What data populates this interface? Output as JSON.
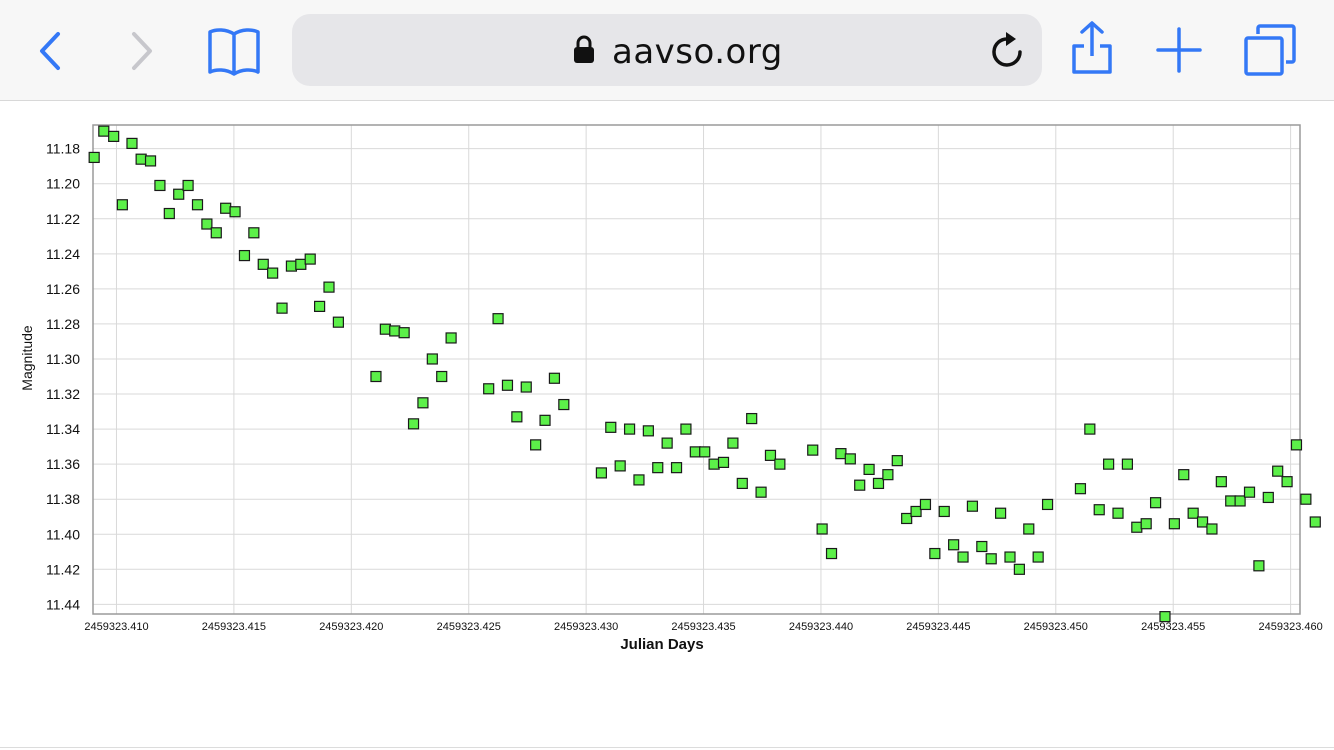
{
  "browser": {
    "url": "aavso.org",
    "icons": [
      "back-icon",
      "forward-icon",
      "bookmarks-icon",
      "lock-icon",
      "reload-icon",
      "share-icon",
      "new-tab-icon",
      "tabs-icon"
    ],
    "colors": {
      "accent": "#3478f6",
      "disabled": "#c7c7cc"
    }
  },
  "chart_data": {
    "type": "scatter",
    "xlabel": "Julian Days",
    "ylabel": "Magnitude",
    "xlim": [
      2459323.409,
      2459323.4604
    ],
    "ylim": [
      11.4455,
      11.1665
    ],
    "y_inverted": true,
    "grid": true,
    "xticks": [
      "2459323.410",
      "2459323.415",
      "2459323.420",
      "2459323.425",
      "2459323.430",
      "2459323.435",
      "2459323.440",
      "2459323.445",
      "2459323.450",
      "2459323.455",
      "2459323.460"
    ],
    "yticks": [
      "11.18",
      "11.20",
      "11.22",
      "11.24",
      "11.26",
      "11.28",
      "11.30",
      "11.32",
      "11.34",
      "11.36",
      "11.38",
      "11.40",
      "11.42",
      "11.44"
    ],
    "marker_color": "#5cf049",
    "points": [
      [
        2459323.40905,
        11.185
      ],
      [
        2459323.40946,
        11.17
      ],
      [
        2459323.40988,
        11.173
      ],
      [
        2459323.41025,
        11.212
      ],
      [
        2459323.41066,
        11.177
      ],
      [
        2459323.41105,
        11.186
      ],
      [
        2459323.41145,
        11.187
      ],
      [
        2459323.41185,
        11.201
      ],
      [
        2459323.41225,
        11.217
      ],
      [
        2459323.41265,
        11.206
      ],
      [
        2459323.41305,
        11.201
      ],
      [
        2459323.41345,
        11.212
      ],
      [
        2459323.41385,
        11.223
      ],
      [
        2459323.41425,
        11.228
      ],
      [
        2459323.41465,
        11.214
      ],
      [
        2459323.41505,
        11.216
      ],
      [
        2459323.41545,
        11.241
      ],
      [
        2459323.41585,
        11.228
      ],
      [
        2459323.41625,
        11.246
      ],
      [
        2459323.41665,
        11.251
      ],
      [
        2459323.41705,
        11.271
      ],
      [
        2459323.41745,
        11.247
      ],
      [
        2459323.41785,
        11.246
      ],
      [
        2459323.41825,
        11.243
      ],
      [
        2459323.41865,
        11.27
      ],
      [
        2459323.41905,
        11.259
      ],
      [
        2459323.41945,
        11.279
      ],
      [
        2459323.42105,
        11.31
      ],
      [
        2459323.42145,
        11.283
      ],
      [
        2459323.42185,
        11.284
      ],
      [
        2459323.42225,
        11.285
      ],
      [
        2459323.42265,
        11.337
      ],
      [
        2459323.42305,
        11.325
      ],
      [
        2459323.42345,
        11.3
      ],
      [
        2459323.42385,
        11.31
      ],
      [
        2459323.42425,
        11.288
      ],
      [
        2459323.42585,
        11.317
      ],
      [
        2459323.42625,
        11.277
      ],
      [
        2459323.42665,
        11.315
      ],
      [
        2459323.42705,
        11.333
      ],
      [
        2459323.42745,
        11.316
      ],
      [
        2459323.42785,
        11.349
      ],
      [
        2459323.42825,
        11.335
      ],
      [
        2459323.42865,
        11.311
      ],
      [
        2459323.42905,
        11.326
      ],
      [
        2459323.43065,
        11.365
      ],
      [
        2459323.43105,
        11.339
      ],
      [
        2459323.43145,
        11.361
      ],
      [
        2459323.43185,
        11.34
      ],
      [
        2459323.43225,
        11.369
      ],
      [
        2459323.43265,
        11.341
      ],
      [
        2459323.43305,
        11.362
      ],
      [
        2459323.43345,
        11.348
      ],
      [
        2459323.43385,
        11.362
      ],
      [
        2459323.43425,
        11.34
      ],
      [
        2459323.43465,
        11.353
      ],
      [
        2459323.43505,
        11.353
      ],
      [
        2459323.43545,
        11.36
      ],
      [
        2459323.43585,
        11.359
      ],
      [
        2459323.43625,
        11.348
      ],
      [
        2459323.43665,
        11.371
      ],
      [
        2459323.43705,
        11.334
      ],
      [
        2459323.43745,
        11.376
      ],
      [
        2459323.43785,
        11.355
      ],
      [
        2459323.43825,
        11.36
      ],
      [
        2459323.43965,
        11.352
      ],
      [
        2459323.44005,
        11.397
      ],
      [
        2459323.44045,
        11.411
      ],
      [
        2459323.44085,
        11.354
      ],
      [
        2459323.44125,
        11.357
      ],
      [
        2459323.44165,
        11.372
      ],
      [
        2459323.44205,
        11.363
      ],
      [
        2459323.44245,
        11.371
      ],
      [
        2459323.44285,
        11.366
      ],
      [
        2459323.44325,
        11.358
      ],
      [
        2459323.44365,
        11.391
      ],
      [
        2459323.44405,
        11.387
      ],
      [
        2459323.44445,
        11.383
      ],
      [
        2459323.44485,
        11.411
      ],
      [
        2459323.44525,
        11.387
      ],
      [
        2459323.44565,
        11.406
      ],
      [
        2459323.44605,
        11.413
      ],
      [
        2459323.44645,
        11.384
      ],
      [
        2459323.44685,
        11.407
      ],
      [
        2459323.44725,
        11.414
      ],
      [
        2459323.44765,
        11.388
      ],
      [
        2459323.44805,
        11.413
      ],
      [
        2459323.44845,
        11.42
      ],
      [
        2459323.44885,
        11.397
      ],
      [
        2459323.44925,
        11.413
      ],
      [
        2459323.44965,
        11.383
      ],
      [
        2459323.45105,
        11.374
      ],
      [
        2459323.45145,
        11.34
      ],
      [
        2459323.45185,
        11.386
      ],
      [
        2459323.45225,
        11.36
      ],
      [
        2459323.45265,
        11.388
      ],
      [
        2459323.45305,
        11.36
      ],
      [
        2459323.45345,
        11.396
      ],
      [
        2459323.45385,
        11.394
      ],
      [
        2459323.45425,
        11.382
      ],
      [
        2459323.45465,
        11.447
      ],
      [
        2459323.45505,
        11.394
      ],
      [
        2459323.45545,
        11.366
      ],
      [
        2459323.45585,
        11.388
      ],
      [
        2459323.45625,
        11.393
      ],
      [
        2459323.45665,
        11.397
      ],
      [
        2459323.45705,
        11.37
      ],
      [
        2459323.45745,
        11.381
      ],
      [
        2459323.45785,
        11.381
      ],
      [
        2459323.45825,
        11.376
      ],
      [
        2459323.45865,
        11.418
      ],
      [
        2459323.45905,
        11.379
      ],
      [
        2459323.45945,
        11.364
      ],
      [
        2459323.45985,
        11.37
      ],
      [
        2459323.46025,
        11.349
      ],
      [
        2459323.46065,
        11.38
      ],
      [
        2459323.46105,
        11.393
      ]
    ]
  }
}
